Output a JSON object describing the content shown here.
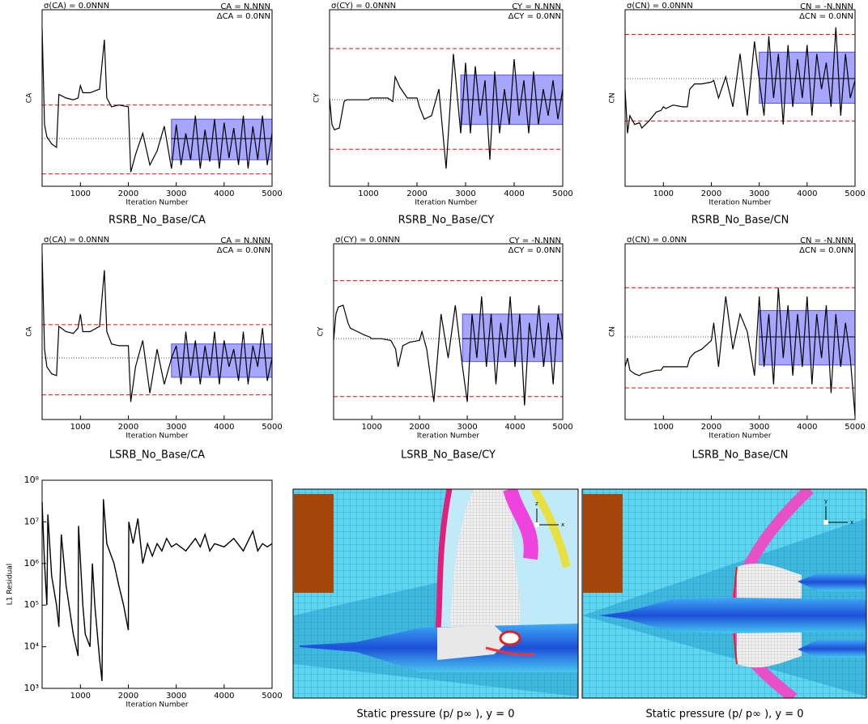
{
  "chart_data": [
    {
      "type": "line",
      "title": "RSRB_No_Base/CA",
      "xlabel": "Iteration Number",
      "ylabel": "CA",
      "annotations": {
        "sigma": "σ(CA) = 0.0NNN",
        "mean": "CA = N.NNN",
        "delta": "ΔCA = 0.0NN"
      },
      "x": [
        200,
        250,
        300,
        400,
        500,
        550,
        700,
        850,
        950,
        1000,
        1050,
        1200,
        1400,
        1500,
        1550,
        1650,
        1800,
        2000,
        2050,
        2150,
        2300,
        2450,
        2600,
        2750,
        2900,
        3000,
        3100,
        3200,
        3300,
        3400,
        3500,
        3600,
        3700,
        3800,
        3900,
        4000,
        4100,
        4200,
        4300,
        4400,
        4500,
        4600,
        4700,
        4800,
        4900,
        5000
      ],
      "values": [
        0.9,
        0.35,
        0.28,
        0.24,
        0.22,
        0.52,
        0.5,
        0.49,
        0.5,
        0.57,
        0.53,
        0.53,
        0.55,
        0.83,
        0.5,
        0.45,
        0.46,
        0.45,
        0.08,
        0.18,
        0.3,
        0.12,
        0.2,
        0.34,
        0.1,
        0.35,
        0.12,
        0.3,
        0.15,
        0.4,
        0.1,
        0.32,
        0.14,
        0.38,
        0.1,
        0.36,
        0.16,
        0.33,
        0.12,
        0.4,
        0.1,
        0.34,
        0.15,
        0.4,
        0.12,
        0.3
      ],
      "color": "#000000",
      "mean": 0.27,
      "sigma_band": [
        0.15,
        0.38
      ],
      "window": [
        2900,
        5000
      ],
      "delta_lines": [
        0.07,
        0.46
      ],
      "band_color": "#0000ff",
      "delta_color": "#ff0000",
      "sigma_color": "#0000ff",
      "xlim": [
        200,
        5000
      ],
      "ylim": [
        0,
        1
      ],
      "xticks": [
        1000,
        2000,
        3000,
        4000,
        5000
      ]
    },
    {
      "type": "line",
      "title": "RSRB_No_Base/CY",
      "xlabel": "Iteration Number",
      "ylabel": "CY",
      "annotations": {
        "sigma": "σ(CY) = 0.0NNN",
        "mean": "CY = N.NNN",
        "delta": "ΔCY = 0.0NN"
      },
      "x": [
        200,
        250,
        300,
        400,
        500,
        550,
        700,
        850,
        950,
        1000,
        1050,
        1200,
        1400,
        1500,
        1550,
        1650,
        1800,
        2000,
        2050,
        2150,
        2300,
        2450,
        2600,
        2750,
        2900,
        3000,
        3100,
        3200,
        3300,
        3400,
        3500,
        3600,
        3700,
        3800,
        3900,
        4000,
        4100,
        4200,
        4300,
        4400,
        4500,
        4600,
        4700,
        4800,
        4900,
        5000
      ],
      "values": [
        0.5,
        0.35,
        0.32,
        0.33,
        0.48,
        0.49,
        0.49,
        0.49,
        0.49,
        0.49,
        0.5,
        0.5,
        0.5,
        0.48,
        0.62,
        0.56,
        0.5,
        0.5,
        0.45,
        0.38,
        0.4,
        0.55,
        0.1,
        0.75,
        0.3,
        0.7,
        0.3,
        0.68,
        0.4,
        0.6,
        0.15,
        0.65,
        0.3,
        0.55,
        0.35,
        0.72,
        0.4,
        0.6,
        0.3,
        0.65,
        0.35,
        0.55,
        0.4,
        0.6,
        0.38,
        0.55
      ],
      "color": "#000000",
      "mean": 0.49,
      "sigma_band": [
        0.35,
        0.63
      ],
      "window": [
        2900,
        5000
      ],
      "delta_lines": [
        0.21,
        0.78
      ],
      "band_color": "#0000ff",
      "delta_color": "#ff0000",
      "sigma_color": "#0000ff",
      "xlim": [
        200,
        5000
      ],
      "ylim": [
        0,
        1
      ],
      "xticks": [
        1000,
        2000,
        3000,
        4000,
        5000
      ]
    },
    {
      "type": "line",
      "title": "RSRB_No_Base/CN",
      "xlabel": "Iteration Number",
      "ylabel": "CN",
      "annotations": {
        "sigma": "σ(CN) = 0.0NNN",
        "mean": "CN = -N.NNN",
        "delta": "ΔCN = 0.0NN"
      },
      "x": [
        200,
        250,
        300,
        400,
        500,
        550,
        700,
        850,
        950,
        1000,
        1050,
        1200,
        1400,
        1500,
        1550,
        1650,
        1800,
        2000,
        2050,
        2150,
        2300,
        2450,
        2600,
        2750,
        2900,
        3000,
        3100,
        3200,
        3300,
        3400,
        3500,
        3600,
        3700,
        3800,
        3900,
        4000,
        4100,
        4200,
        4300,
        4400,
        4500,
        4600,
        4700,
        4800,
        4900,
        5000
      ],
      "values": [
        0.55,
        0.3,
        0.4,
        0.35,
        0.36,
        0.33,
        0.37,
        0.42,
        0.43,
        0.45,
        0.44,
        0.46,
        0.45,
        0.45,
        0.55,
        0.58,
        0.58,
        0.59,
        0.6,
        0.5,
        0.62,
        0.45,
        0.75,
        0.4,
        0.82,
        0.6,
        0.4,
        0.85,
        0.5,
        0.75,
        0.35,
        0.8,
        0.45,
        0.72,
        0.5,
        0.8,
        0.4,
        0.75,
        0.55,
        0.7,
        0.45,
        0.9,
        0.4,
        0.75,
        0.5,
        0.6
      ],
      "color": "#000000",
      "mean": 0.61,
      "sigma_band": [
        0.47,
        0.76
      ],
      "window": [
        3000,
        5000
      ],
      "delta_lines": [
        0.37,
        0.86
      ],
      "band_color": "#0000ff",
      "delta_color": "#ff0000",
      "sigma_color": "#0000ff",
      "xlim": [
        200,
        5000
      ],
      "ylim": [
        0,
        1
      ],
      "xticks": [
        1000,
        2000,
        3000,
        4000,
        5000
      ]
    },
    {
      "type": "line",
      "title": "LSRB_No_Base/CA",
      "xlabel": "Iteration Number",
      "ylabel": "CA",
      "annotations": {
        "sigma": "σ(CA) = 0.0NNN",
        "mean": "CA = N.NNN",
        "delta": "ΔCA = 0.0NN"
      },
      "x": [
        200,
        250,
        300,
        400,
        500,
        550,
        700,
        850,
        950,
        1000,
        1050,
        1200,
        1400,
        1500,
        1550,
        1650,
        1800,
        2000,
        2050,
        2150,
        2300,
        2450,
        2600,
        2750,
        2900,
        3000,
        3100,
        3200,
        3300,
        3400,
        3500,
        3600,
        3700,
        3800,
        3900,
        4000,
        4100,
        4200,
        4300,
        4400,
        4500,
        4600,
        4700,
        4800,
        4900,
        5000
      ],
      "values": [
        0.95,
        0.4,
        0.3,
        0.26,
        0.25,
        0.53,
        0.5,
        0.49,
        0.52,
        0.6,
        0.5,
        0.5,
        0.53,
        0.85,
        0.5,
        0.43,
        0.42,
        0.42,
        0.1,
        0.3,
        0.45,
        0.15,
        0.4,
        0.2,
        0.35,
        0.42,
        0.2,
        0.5,
        0.25,
        0.45,
        0.2,
        0.42,
        0.25,
        0.5,
        0.2,
        0.45,
        0.3,
        0.4,
        0.22,
        0.5,
        0.2,
        0.42,
        0.3,
        0.52,
        0.22,
        0.35
      ],
      "color": "#000000",
      "mean": 0.35,
      "sigma_band": [
        0.24,
        0.43
      ],
      "window": [
        2900,
        5000
      ],
      "delta_lines": [
        0.14,
        0.54
      ],
      "band_color": "#0000ff",
      "delta_color": "#ff0000",
      "sigma_color": "#0000ff",
      "xlim": [
        200,
        5000
      ],
      "ylim": [
        0,
        1
      ],
      "xticks": [
        1000,
        2000,
        3000,
        4000,
        5000
      ]
    },
    {
      "type": "line",
      "title": "LSRB_No_Base/CY",
      "xlabel": "Iteration Number",
      "ylabel": "CY",
      "annotations": {
        "sigma": "σ(CY) = 0.0NNN",
        "mean": "CY = -N.NNN",
        "delta": "ΔCY = 0.0NN"
      },
      "x": [
        200,
        250,
        300,
        400,
        500,
        550,
        700,
        850,
        950,
        1000,
        1050,
        1200,
        1400,
        1500,
        1550,
        1650,
        1800,
        2000,
        2050,
        2150,
        2300,
        2450,
        2600,
        2750,
        2900,
        3000,
        3100,
        3200,
        3300,
        3400,
        3500,
        3600,
        3700,
        3800,
        3900,
        4000,
        4100,
        4200,
        4300,
        4400,
        4500,
        4600,
        4700,
        4800,
        4900,
        5000
      ],
      "values": [
        0.45,
        0.6,
        0.64,
        0.65,
        0.55,
        0.52,
        0.5,
        0.48,
        0.47,
        0.46,
        0.46,
        0.46,
        0.45,
        0.4,
        0.3,
        0.42,
        0.44,
        0.45,
        0.5,
        0.4,
        0.1,
        0.6,
        0.35,
        0.65,
        0.3,
        0.1,
        0.6,
        0.35,
        0.7,
        0.3,
        0.6,
        0.2,
        0.55,
        0.35,
        0.7,
        0.3,
        0.6,
        0.08,
        0.55,
        0.35,
        0.65,
        0.3,
        0.55,
        0.2,
        0.6,
        0.45
      ],
      "color": "#000000",
      "mean": 0.46,
      "sigma_band": [
        0.33,
        0.6
      ],
      "window": [
        2900,
        5000
      ],
      "delta_lines": [
        0.13,
        0.79
      ],
      "band_color": "#0000ff",
      "delta_color": "#ff0000",
      "sigma_color": "#0000ff",
      "xlim": [
        200,
        5000
      ],
      "ylim": [
        0,
        1
      ],
      "xticks": [
        1000,
        2000,
        3000,
        4000,
        5000
      ]
    },
    {
      "type": "line",
      "title": "LSRB_No_Base/CN",
      "xlabel": "Iteration Number",
      "ylabel": "CN",
      "annotations": {
        "sigma": "σ(CN) = 0.0NN",
        "mean": "CN = -N.NNN",
        "delta": "ΔCN = 0.0NN"
      },
      "x": [
        200,
        250,
        300,
        400,
        500,
        550,
        700,
        850,
        950,
        1000,
        1050,
        1200,
        1400,
        1500,
        1550,
        1650,
        1800,
        2000,
        2050,
        2150,
        2300,
        2450,
        2600,
        2750,
        2900,
        3000,
        3100,
        3200,
        3300,
        3400,
        3500,
        3600,
        3700,
        3800,
        3900,
        4000,
        4100,
        4200,
        4300,
        4400,
        4500,
        4600,
        4700,
        4800,
        4900,
        5000
      ],
      "values": [
        0.3,
        0.35,
        0.28,
        0.26,
        0.25,
        0.26,
        0.27,
        0.28,
        0.28,
        0.3,
        0.3,
        0.3,
        0.3,
        0.3,
        0.35,
        0.38,
        0.4,
        0.45,
        0.55,
        0.3,
        0.7,
        0.4,
        0.6,
        0.5,
        0.25,
        0.7,
        0.3,
        0.6,
        0.2,
        0.75,
        0.35,
        0.65,
        0.25,
        0.6,
        0.3,
        0.7,
        0.2,
        0.6,
        0.35,
        0.65,
        0.15,
        0.6,
        0.3,
        0.55,
        0.35,
        0.02
      ],
      "color": "#000000",
      "mean": 0.47,
      "sigma_band": [
        0.31,
        0.62
      ],
      "window": [
        3000,
        5000
      ],
      "delta_lines": [
        0.18,
        0.75
      ],
      "band_color": "#0000ff",
      "delta_color": "#ff0000",
      "sigma_color": "#0000ff",
      "xlim": [
        200,
        5000
      ],
      "ylim": [
        0,
        1
      ],
      "xticks": [
        1000,
        2000,
        3000,
        4000,
        5000
      ]
    },
    {
      "type": "logline",
      "xlabel": "Iteration Number",
      "ylabel": "L1 Residual",
      "log_y": true,
      "color": "#000000",
      "x": [
        200,
        250,
        300,
        320,
        400,
        500,
        550,
        600,
        700,
        850,
        950,
        960,
        1050,
        1100,
        1200,
        1250,
        1300,
        1400,
        1450,
        1480,
        1550,
        1700,
        1800,
        1900,
        2000,
        2010,
        2100,
        2200,
        2300,
        2400,
        2500,
        2600,
        2700,
        2800,
        2900,
        3000,
        3200,
        3400,
        3500,
        3600,
        3700,
        3800,
        4000,
        4200,
        4400,
        4600,
        4700,
        4800,
        4900,
        5000
      ],
      "values": [
        30000000,
        1000000,
        100000,
        15000000,
        500000,
        100000,
        30000,
        5000000,
        300000,
        20000,
        6000,
        8000000,
        100000,
        20000,
        10000,
        1000000,
        100000,
        5000,
        1500,
        35000000,
        3000000,
        1000000,
        300000,
        100000,
        25000,
        10000000,
        3000000,
        12000000,
        1000000,
        3000000,
        1500000,
        3000000,
        2000000,
        4000000,
        2500000,
        3000000,
        2000000,
        4000000,
        2500000,
        5000000,
        2000000,
        3000000,
        2500000,
        4000000,
        2000000,
        6000000,
        2000000,
        3000000,
        2500000,
        3000000
      ],
      "xlim": [
        200,
        5000
      ],
      "ylim": [
        1000,
        100000000
      ],
      "xticks": [
        1000,
        2000,
        3000,
        4000,
        5000
      ],
      "yticks": [
        {
          "value": 1000,
          "label": "10³"
        },
        {
          "value": 10000,
          "label": "10⁴"
        },
        {
          "value": 100000,
          "label": "10⁵"
        },
        {
          "value": 1000000,
          "label": "10⁶"
        },
        {
          "value": 10000000,
          "label": "10⁷"
        },
        {
          "value": 100000000,
          "label": "10⁸"
        }
      ]
    }
  ],
  "images": [
    {
      "caption": "Static pressure (p/ p∞ ), y = 0",
      "axis_labels": [
        "z",
        "x"
      ]
    },
    {
      "caption": "Static pressure (p/ p∞ ), y = 0",
      "axis_labels": [
        "y",
        "x"
      ]
    }
  ]
}
